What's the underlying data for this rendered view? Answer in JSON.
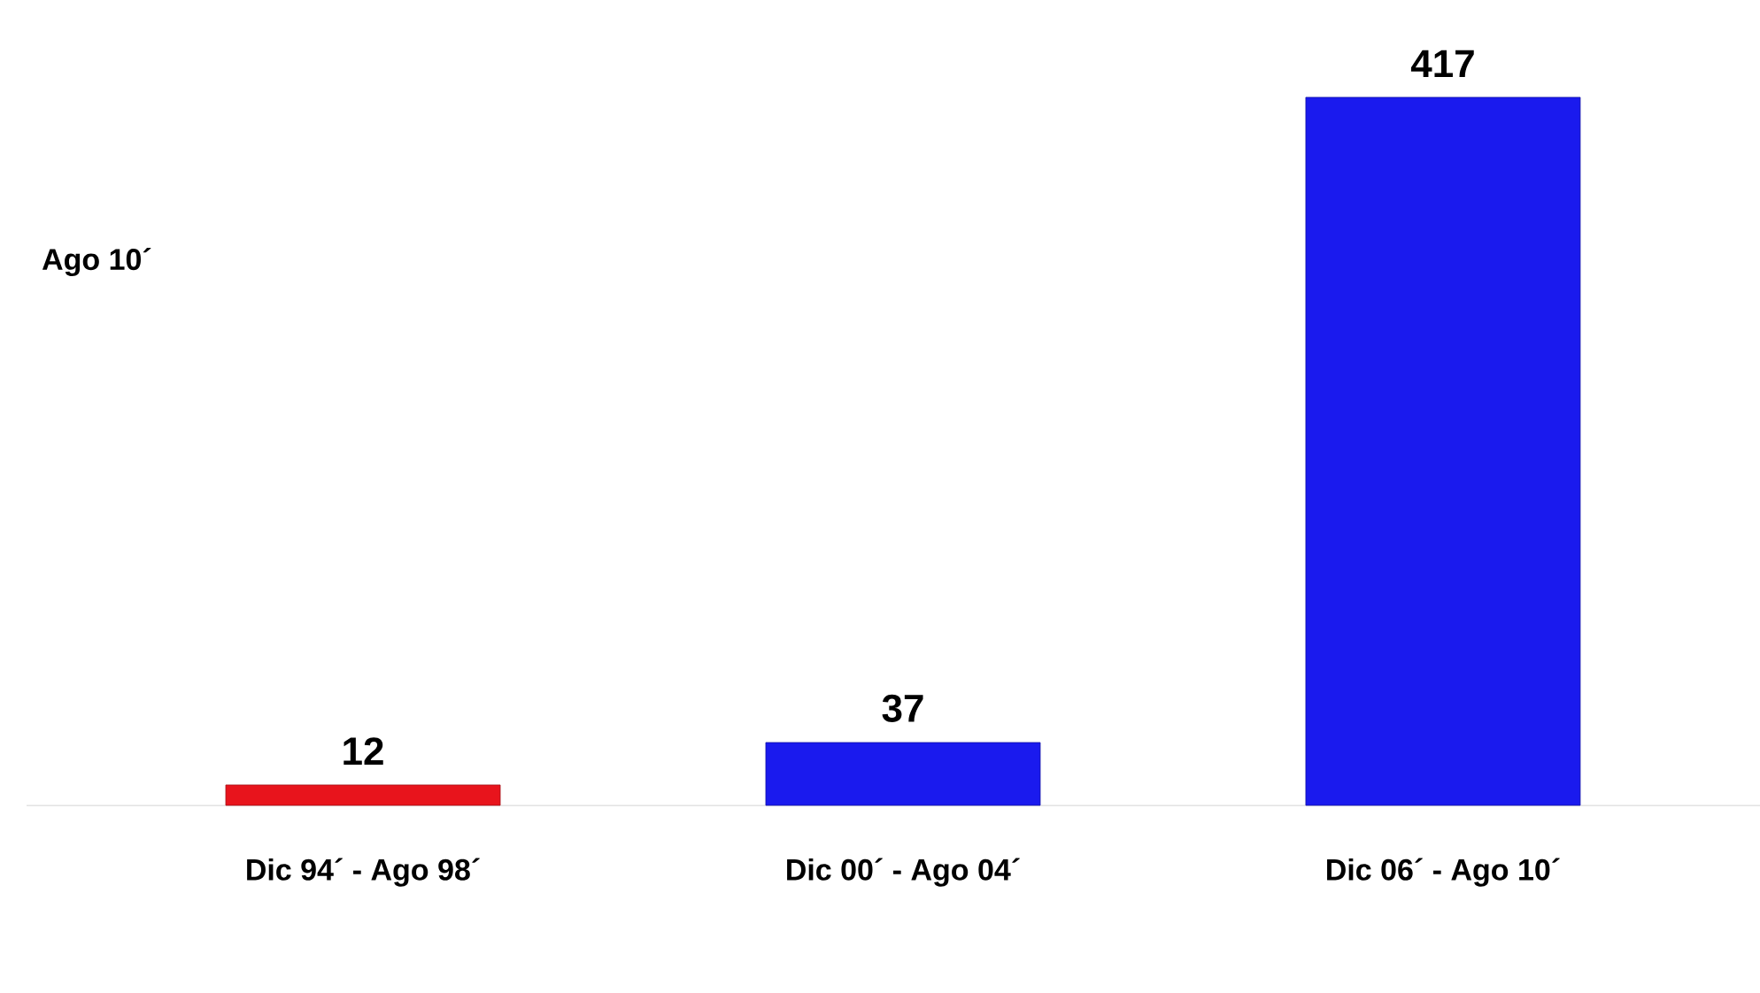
{
  "chart_data": {
    "type": "bar",
    "categories": [
      "Dic 94´ -   Ago 98´",
      "Dic 00´ -   Ago 04´",
      "Dic 06´ -   Ago 10´"
    ],
    "values": [
      12,
      37,
      417
    ],
    "colors": [
      "#e8141c",
      "#1a1aee",
      "#1a1aee"
    ],
    "data_labels": true,
    "annotations": [
      "Ago 10´"
    ]
  }
}
